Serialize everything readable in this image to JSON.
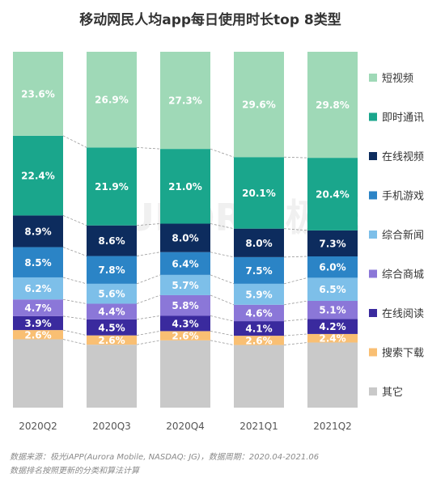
{
  "title": "移动网民人均app每日使用时长top 8类型",
  "watermark": "AURORA 极光",
  "footer": {
    "source": "数据来源：极光iAPP(Aurora Mobile, NASDAQ: JG)，数据周期：2020.04-2021.06",
    "method": "数据排名按照更新的分类和算法计算"
  },
  "chart_data": {
    "type": "bar",
    "stacked": true,
    "percent": true,
    "categories": [
      "2020Q2",
      "2020Q3",
      "2020Q4",
      "2021Q1",
      "2021Q2"
    ],
    "series": [
      {
        "name": "其它",
        "color": "#c9c9c9",
        "values": [
          null,
          null,
          null,
          null,
          null
        ]
      },
      {
        "name": "搜索下载",
        "color": "#f9bf73",
        "values": [
          2.6,
          2.6,
          2.6,
          2.6,
          2.4
        ]
      },
      {
        "name": "在线阅读",
        "color": "#3a2a9e",
        "values": [
          3.9,
          4.5,
          4.3,
          4.1,
          4.2
        ]
      },
      {
        "name": "综合商城",
        "color": "#8b77d8",
        "values": [
          4.7,
          4.4,
          5.8,
          4.6,
          5.1
        ]
      },
      {
        "name": "综合新闻",
        "color": "#7dbfe9",
        "values": [
          6.2,
          5.6,
          5.7,
          5.9,
          6.5
        ]
      },
      {
        "name": "手机游戏",
        "color": "#2b84c6",
        "values": [
          8.5,
          7.8,
          6.4,
          7.5,
          6.0
        ]
      },
      {
        "name": "在线视频",
        "color": "#0d2c5e",
        "values": [
          8.9,
          8.6,
          8.0,
          8.0,
          7.3
        ]
      },
      {
        "name": "即时通讯",
        "color": "#1aa68c",
        "values": [
          22.4,
          21.9,
          21.0,
          20.1,
          20.4
        ]
      },
      {
        "name": "短视频",
        "color": "#9fd9b7",
        "values": [
          23.6,
          26.9,
          27.3,
          29.6,
          29.8
        ]
      }
    ],
    "legend_order": [
      "短视频",
      "即时通讯",
      "在线视频",
      "手机游戏",
      "综合新闻",
      "综合商城",
      "在线阅读",
      "搜索下载",
      "其它"
    ],
    "legend_position": "right",
    "ylim": [
      0,
      100
    ],
    "grid": false
  }
}
